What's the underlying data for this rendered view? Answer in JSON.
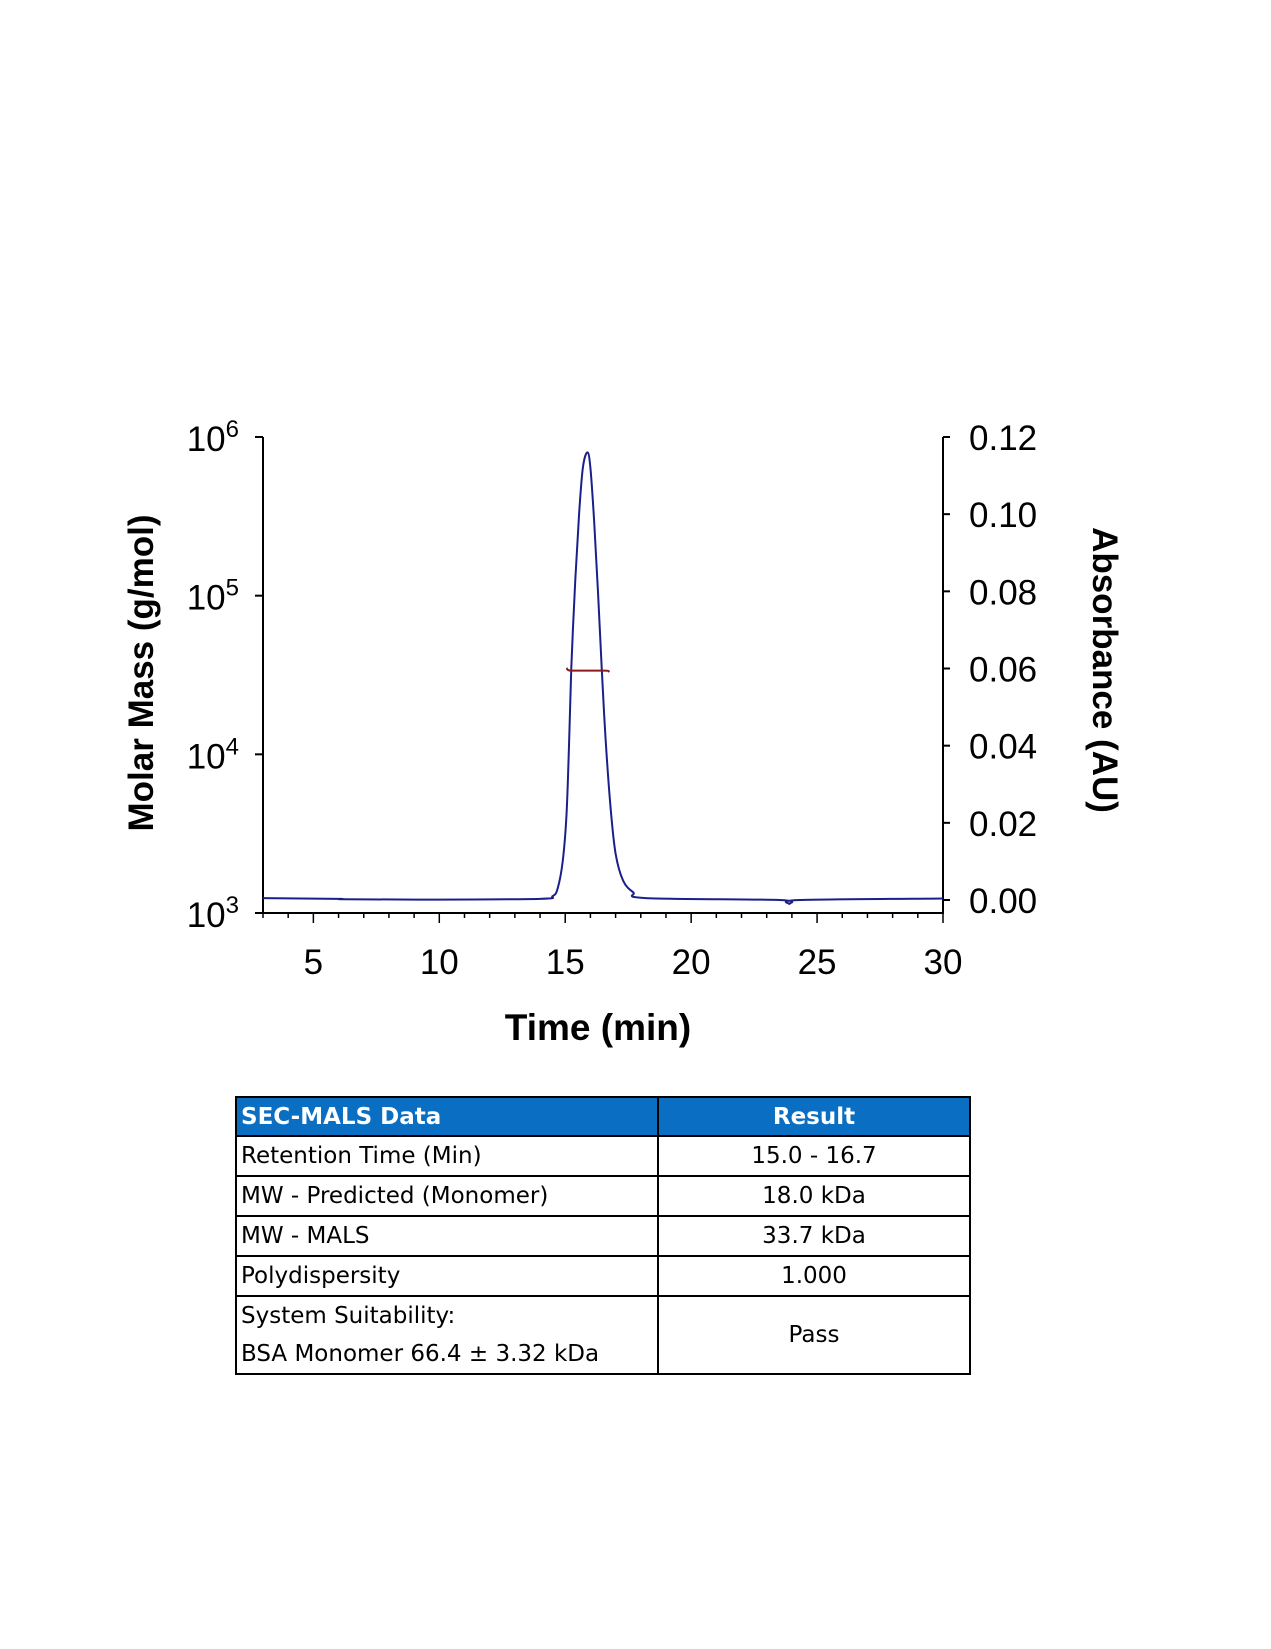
{
  "chart_data": {
    "type": "line",
    "xlabel": "Time (min)",
    "ylabel_left": "Molar Mass (g/mol)",
    "ylabel_right": "Absorbance (AU)",
    "xlim": [
      3,
      30
    ],
    "xticks": [
      5,
      10,
      15,
      20,
      25,
      30
    ],
    "ylim_left": [
      1000,
      1000000
    ],
    "yscale_left": "log",
    "yticks_left": [
      {
        "base": "10",
        "exp": "3"
      },
      {
        "base": "10",
        "exp": "4"
      },
      {
        "base": "10",
        "exp": "5"
      },
      {
        "base": "10",
        "exp": "6"
      }
    ],
    "ylim_right": [
      0,
      0.12
    ],
    "yticks_right": [
      "0.00",
      "0.02",
      "0.04",
      "0.06",
      "0.08",
      "0.10",
      "0.12"
    ],
    "grid": false,
    "colors": {
      "absorbance": "#1B1F8A",
      "molar_mass": "#8B1A1A"
    },
    "series": [
      {
        "axis": "right",
        "x": [
          3,
          6,
          6.2,
          9.5,
          14,
          14.5,
          14.7,
          14.9,
          15.05,
          15.15,
          15.24,
          15.4,
          15.55,
          15.7,
          15.88,
          16.0,
          16.15,
          16.3,
          16.45,
          16.6,
          16.8,
          17.0,
          17.3,
          17.7,
          18.2,
          23.5,
          23.9,
          24.3,
          30
        ],
        "y": [
          0.0005,
          0.0003,
          0.0002,
          0.0001,
          0.0003,
          0.001,
          0.003,
          0.01,
          0.022,
          0.04,
          0.06,
          0.083,
          0.1,
          0.112,
          0.116,
          0.112,
          0.098,
          0.08,
          0.06,
          0.042,
          0.024,
          0.012,
          0.005,
          0.002,
          0.0005,
          0.0,
          -0.001,
          0.0,
          0.0004
        ]
      },
      {
        "axis": "left",
        "x": [
          15.05,
          15.15,
          15.5,
          16.0,
          16.5,
          16.7,
          16.75
        ],
        "y": [
          35000,
          33800,
          33700,
          33700,
          33700,
          33600,
          33000
        ]
      }
    ]
  },
  "table": {
    "headers": [
      "SEC-MALS Data",
      "Result"
    ],
    "rows": [
      {
        "label": "Retention Time (Min)",
        "value": "15.0 - 16.7"
      },
      {
        "label": "MW - Predicted (Monomer)",
        "value": "18.0 kDa"
      },
      {
        "label": "MW - MALS",
        "value": "33.7 kDa"
      },
      {
        "label": "Polydispersity",
        "value": "1.000"
      },
      {
        "label": "System Suitability:",
        "label2": "BSA Monomer 66.4 ± 3.32 kDa",
        "value": "Pass"
      }
    ]
  }
}
